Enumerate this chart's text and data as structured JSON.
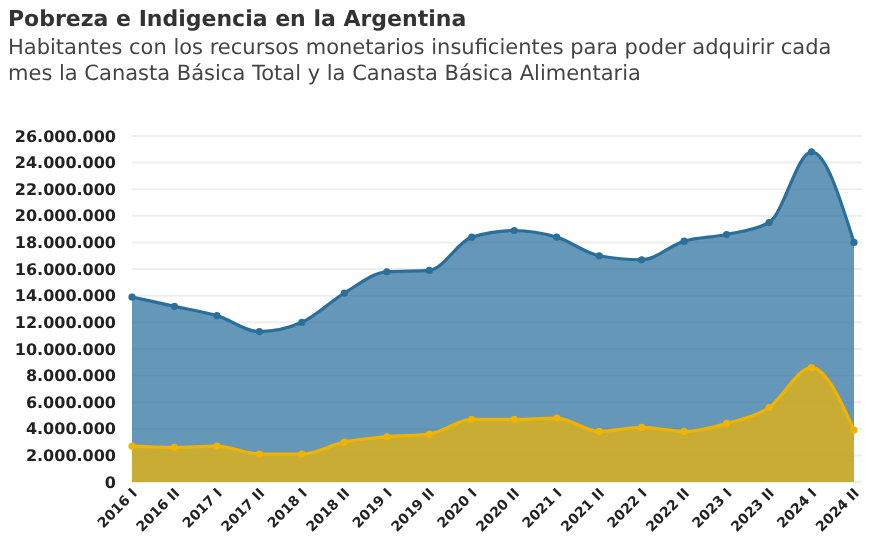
{
  "chart_data": {
    "type": "area",
    "title": "Pobreza e Indigencia en la Argentina",
    "subtitle": "Habitantes con los recursos monetarios insuficientes para poder adquirir cada mes la Canasta Básica Total y la Canasta Básica Alimentaria",
    "categories": [
      "2016 I",
      "2016 II",
      "2017 I",
      "2017 II",
      "2018 I",
      "2018 II",
      "2019 I",
      "2019 II",
      "2020 I",
      "2020 II",
      "2021 I",
      "2021 II",
      "2022 I",
      "2022 II",
      "2023 I",
      "2023 II",
      "2024 I",
      "2024 II"
    ],
    "series": [
      {
        "color": "#2a6f9c",
        "values": [
          13900000,
          13200000,
          12500000,
          11300000,
          12000000,
          14200000,
          15800000,
          15900000,
          18400000,
          18900000,
          18400000,
          17000000,
          16700000,
          18100000,
          18600000,
          19500000,
          24800000,
          18000000
        ]
      },
      {
        "color": "#f0b400",
        "values": [
          2700000,
          2600000,
          2700000,
          2100000,
          2100000,
          3000000,
          3400000,
          3600000,
          4700000,
          4700000,
          4800000,
          3800000,
          4100000,
          3800000,
          4400000,
          5600000,
          8600000,
          3900000
        ]
      }
    ],
    "ylim": [
      0,
      26000000
    ],
    "yticks": [
      {
        "value": 0,
        "label": "0"
      },
      {
        "value": 2000000,
        "label": "2.000.000"
      },
      {
        "value": 4000000,
        "label": "4.000.000"
      },
      {
        "value": 6000000,
        "label": "6.000.000"
      },
      {
        "value": 8000000,
        "label": "8.000.000"
      },
      {
        "value": 10000000,
        "label": "10.000.000"
      },
      {
        "value": 12000000,
        "label": "12.000.000"
      },
      {
        "value": 14000000,
        "label": "14.000.000"
      },
      {
        "value": 16000000,
        "label": "16.000.000"
      },
      {
        "value": 18000000,
        "label": "18.000.000"
      },
      {
        "value": 20000000,
        "label": "20.000.000"
      },
      {
        "value": 22000000,
        "label": "22.000.000"
      },
      {
        "value": 24000000,
        "label": "24.000.000"
      },
      {
        "value": 26000000,
        "label": "26.000.000"
      }
    ],
    "grid": "y",
    "marker": "circle"
  }
}
